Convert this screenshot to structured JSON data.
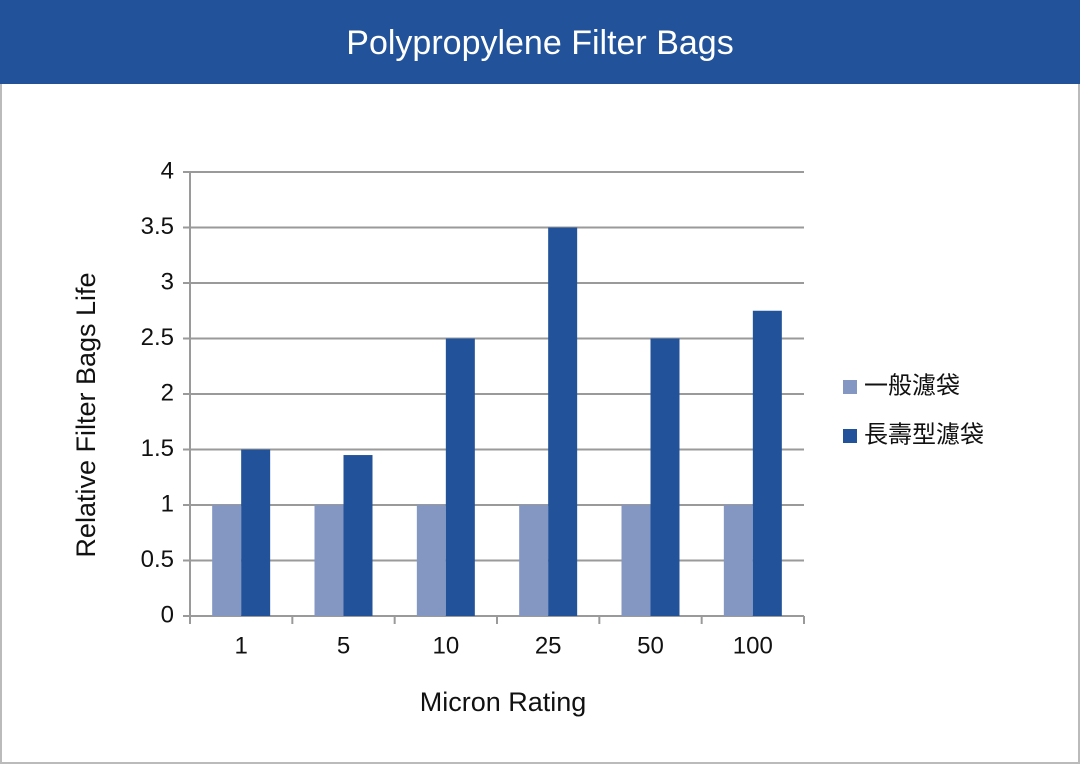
{
  "chart_data": {
    "type": "bar",
    "title": "Polypropylene Filter Bags",
    "x_label": "Micron Rating",
    "y_label": "Relative Filter Bags Life",
    "categories": [
      "1",
      "5",
      "10",
      "25",
      "50",
      "100"
    ],
    "series": [
      {
        "name": "一般濾袋",
        "color": "#8497c2",
        "values": [
          1,
          1,
          1,
          1,
          1,
          1
        ]
      },
      {
        "name": "長壽型濾袋",
        "color": "#21529a",
        "values": [
          1.5,
          1.45,
          2.5,
          3.5,
          2.5,
          2.75
        ]
      }
    ],
    "ylim": [
      0,
      4
    ],
    "yticks": [
      0,
      0.5,
      1,
      1.5,
      2,
      2.5,
      3,
      3.5,
      4
    ],
    "grid": true,
    "legend": "right"
  }
}
